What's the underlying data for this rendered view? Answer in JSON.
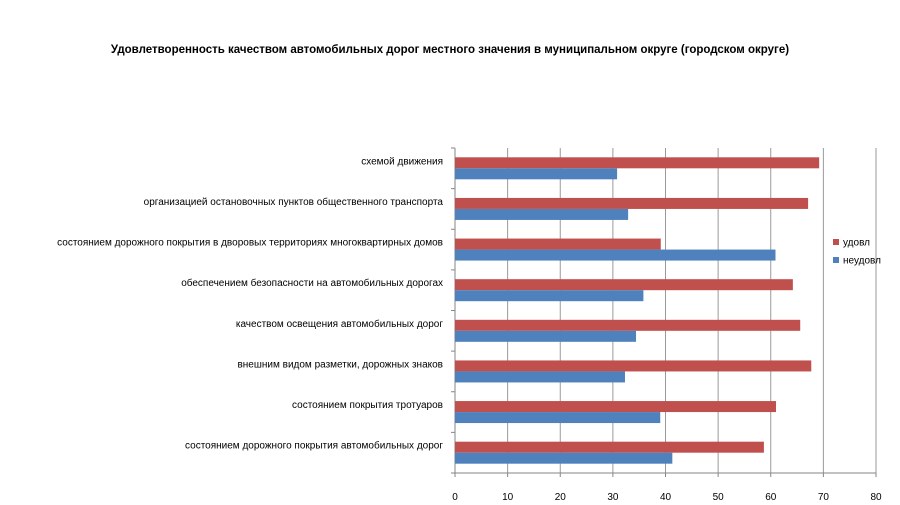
{
  "chart_data": {
    "type": "bar",
    "orientation": "horizontal",
    "title": "Удовлетворенность качеством автомобильных дорог местного значения в муниципальном округе (городском округе)",
    "categories": [
      "схемой движения",
      "организацией остановочных пунктов общественного транспорта",
      "состоянием дорожного покрытия в дворовых территориях многоквартирных домов",
      "обеспечением безопасности на автомобильных дорогах",
      "качеством освещения автомобильных дорог",
      "внешним видом разметки, дорожных знаков",
      "состоянием покрытия тротуаров",
      "состоянием дорожного покрытия автомобильных дорог"
    ],
    "series": [
      {
        "name": "удовл",
        "color": "#C0504D",
        "values": [
          69.2,
          67.1,
          39.1,
          64.2,
          65.6,
          67.7,
          61.0,
          58.7
        ]
      },
      {
        "name": "неудовл",
        "color": "#4F81BD",
        "values": [
          30.8,
          32.9,
          60.9,
          35.8,
          34.4,
          32.3,
          39.0,
          41.3
        ]
      }
    ],
    "xlim": [
      0,
      80
    ],
    "xticks": [
      "0",
      "10",
      "20",
      "30",
      "40",
      "50",
      "60",
      "70",
      "80"
    ],
    "grid": true,
    "legend_position": "right"
  }
}
